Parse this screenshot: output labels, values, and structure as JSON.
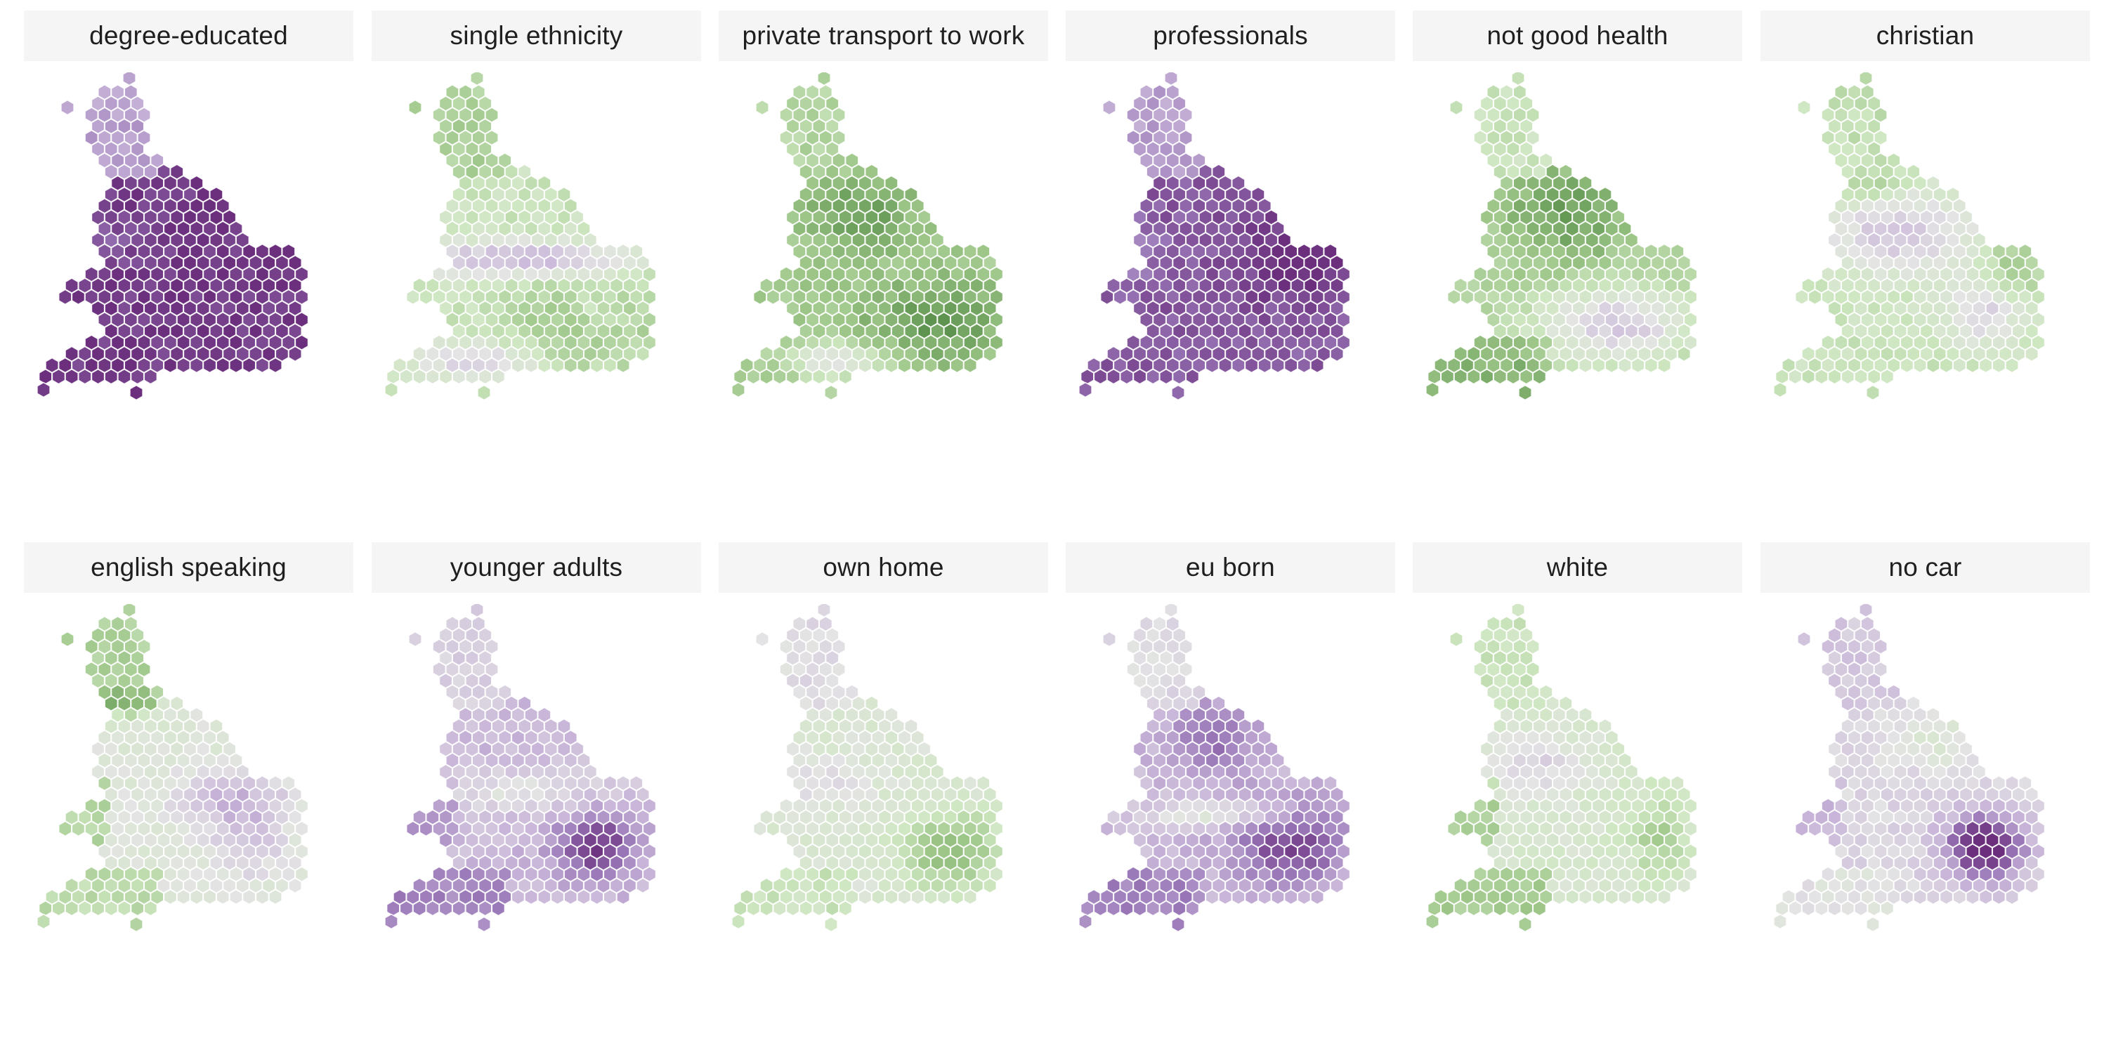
{
  "figure": {
    "panels": [
      {
        "key": "degree_educated",
        "title": "degree-educated",
        "pattern": "degree"
      },
      {
        "key": "single_ethnicity",
        "title": "single ethnicity",
        "pattern": "single"
      },
      {
        "key": "private_transport",
        "title": "private transport to work",
        "pattern": "transport"
      },
      {
        "key": "professionals",
        "title": "professionals",
        "pattern": "professionals"
      },
      {
        "key": "not_good_health",
        "title": "not good health",
        "pattern": "health"
      },
      {
        "key": "christian",
        "title": "christian",
        "pattern": "christian"
      },
      {
        "key": "english_speaking",
        "title": "english speaking",
        "pattern": "english"
      },
      {
        "key": "younger_adults",
        "title": "younger adults",
        "pattern": "younger"
      },
      {
        "key": "own_home",
        "title": "own home",
        "pattern": "ownhome"
      },
      {
        "key": "eu_born",
        "title": "eu born",
        "pattern": "euborn"
      },
      {
        "key": "white",
        "title": "white",
        "pattern": "white"
      },
      {
        "key": "no_car",
        "title": "no car",
        "pattern": "nocar"
      }
    ]
  },
  "colors": {
    "purple_strong": "#6b2f7d",
    "purple_mid": "#9a78b8",
    "purple_light": "#c9b6d9",
    "neutral": "#e4e4e4",
    "green_light": "#cfe7c2",
    "green_mid": "#9cc587",
    "green_strong": "#5e944f",
    "hex_stroke": "#ffffff"
  },
  "scale": {
    "diverging": [
      "#6b2f7d",
      "#9a78b8",
      "#c9b6d9",
      "#e4e4e4",
      "#cfe7c2",
      "#9cc587",
      "#5e944f"
    ]
  }
}
